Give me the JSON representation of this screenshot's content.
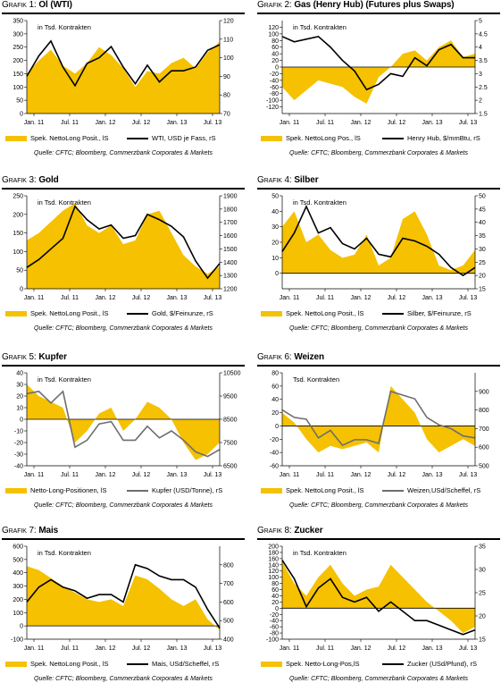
{
  "charts": [
    {
      "label": "Grafik 1:",
      "title": "Öl (WTI)",
      "unit_note": "in Tsd. Kontrakten",
      "area_legend": "Spek. NettoLong Posit., lS",
      "line_legend": "WTI, USD je Fass, rS",
      "line_color": "#000000",
      "source": "Quelle: CFTC; Bloomberg, Commerzbank Corporates & Markets",
      "x_ticks": [
        "Jan. 11",
        "Jul. 11",
        "Jan. 12",
        "Jul. 12",
        "Jan. 13",
        "Jul. 13"
      ]
    },
    {
      "label": "Grafik 2:",
      "title": "Gas (Henry Hub) (Futures plus Swaps)",
      "unit_note": "in Tsd. Kontrakten",
      "area_legend": "Spek. NettoLong Pos., lS",
      "line_legend": "Henry Hub, $/mmBtu, rS",
      "line_color": "#000000",
      "source": "Quelle: CFTC; Bloomberg, Commerzbank Corporates & Markets",
      "x_ticks": [
        "Jan. 11",
        "Jul. 11",
        "Jan. 12",
        "Jul. 12",
        "Jan. 13",
        "Jul. 13"
      ]
    },
    {
      "label": "Grafik 3:",
      "title": "Gold",
      "unit_note": "in Tsd. Kontrakten",
      "area_legend": "Spek. NettoLong Posit., lS",
      "line_legend": "Gold, $/Feinunze, rS",
      "line_color": "#000000",
      "source": "Quelle: CFTC; Bloomberg, Commerzbank Corporates & Markets",
      "x_ticks": [
        "Jan. 11",
        "Jul. 11",
        "Jan. 12",
        "Jul. 12",
        "Jan. 13",
        "Jul. 13"
      ]
    },
    {
      "label": "Grafik 4:",
      "title": "Silber",
      "unit_note": "in Tsd. Kontrakten",
      "area_legend": "Spek. NettoLong Posit., lS",
      "line_legend": "Silber, $/Feinunze, rS",
      "line_color": "#000000",
      "source": "Quelle: CFTC; Bloomberg, Commerzbank Corporates & Markets",
      "x_ticks": [
        "Jan. 11",
        "Jul. 11",
        "Jan. 12",
        "Jul. 12",
        "Jan. 13",
        "Jul. 13"
      ]
    },
    {
      "label": "Grafik 5:",
      "title": "Kupfer",
      "unit_note": "in Tsd. Kontrakten",
      "area_legend": "Netto-Long-Positionen, lS",
      "line_legend": "Kupfer (USD/Tonne), rS",
      "line_color": "#6e6e6e",
      "source": "Quelle: CFTC; Bloomberg, Commerzbank Corporates & Markets",
      "x_ticks": [
        "Jan. 11",
        "Jul. 11",
        "Jan. 12",
        "Jul. 12",
        "Jan. 13",
        "Jul. 13"
      ]
    },
    {
      "label": "Grafik 6:",
      "title": "Weizen",
      "unit_note": "Tsd. Kontrakten",
      "area_legend": "Spek. NettoLong Posit., lS",
      "line_legend": "Weizen,USd/Scheffel, rS",
      "line_color": "#6e6e6e",
      "source": "Quelle: CFTC; Bloomberg, Commerzbank Corporates & Markets",
      "x_ticks": [
        "Jan. 11",
        "Jul. 11",
        "Jan. 12",
        "Jul. 12",
        "Jan. 13",
        "Jul. 13"
      ]
    },
    {
      "label": "Grafik 7:",
      "title": "Mais",
      "unit_note": "in Tsd. Kontrakten",
      "area_legend": "Spek. NettoLong Posit., lS",
      "line_legend": "Mais, USd/Scheffel, rS",
      "line_color": "#000000",
      "source": "Quelle: CFTC; Bloomberg, Commerzbank Corporates & Markets",
      "x_ticks": [
        "Jan. 11",
        "Jul. 11",
        "Jan. 12",
        "Jul. 12",
        "Jan. 13",
        "Jul. 13"
      ]
    },
    {
      "label": "Grafik 8:",
      "title": "Zucker",
      "unit_note": "in Tsd. Kontrakten",
      "area_legend": "Spek. Netto-Long-Pos,lS",
      "line_legend": "Zucker (USd/Pfund), rS",
      "line_color": "#000000",
      "source": "Quelle: CFTC; Bloomberg, Commerzbank Corporates & Markets",
      "x_ticks": [
        "Jan. 11",
        "Jul. 11",
        "Jan. 12",
        "Jul. 12",
        "Jan. 13",
        "Jul. 13"
      ]
    }
  ],
  "chart_data": [
    {
      "type": "area",
      "title": "Öl (WTI)",
      "x": [
        "2011-01",
        "2011-03",
        "2011-05",
        "2011-07",
        "2011-09",
        "2011-11",
        "2012-01",
        "2012-03",
        "2012-05",
        "2012-07",
        "2012-09",
        "2012-11",
        "2013-01",
        "2013-03",
        "2013-05",
        "2013-07",
        "2013-09"
      ],
      "series": [
        {
          "name": "Spek. NettoLong Posit., lS",
          "axis": "left",
          "values": [
            150,
            200,
            240,
            180,
            150,
            190,
            250,
            220,
            170,
            100,
            160,
            150,
            190,
            210,
            170,
            230,
            270
          ]
        },
        {
          "name": "WTI, USD je Fass, rS",
          "axis": "right",
          "values": [
            90,
            101,
            109,
            95,
            85,
            97,
            100,
            106,
            95,
            86,
            96,
            87,
            93,
            93,
            95,
            104,
            107
          ]
        }
      ],
      "ylim_left": [
        0,
        350
      ],
      "ylim_right": [
        70,
        120
      ],
      "yticks_left": [
        0,
        50,
        100,
        150,
        200,
        250,
        300,
        350
      ],
      "yticks_right": [
        70,
        80,
        90,
        100,
        110,
        120
      ]
    },
    {
      "type": "area",
      "title": "Gas (Henry Hub) (Futures plus Swaps)",
      "x": [
        "2011-01",
        "2011-03",
        "2011-05",
        "2011-07",
        "2011-09",
        "2011-11",
        "2012-01",
        "2012-03",
        "2012-05",
        "2012-07",
        "2012-09",
        "2012-11",
        "2013-01",
        "2013-03",
        "2013-05",
        "2013-07",
        "2013-09"
      ],
      "series": [
        {
          "name": "Spek. NettoLong Pos., lS",
          "axis": "left",
          "values": [
            -60,
            -100,
            -70,
            -40,
            -50,
            -60,
            -90,
            -110,
            -30,
            0,
            40,
            50,
            20,
            60,
            80,
            30,
            40
          ]
        },
        {
          "name": "Henry Hub, $/mmBtu, rS",
          "axis": "right",
          "values": [
            4.4,
            4.2,
            4.3,
            4.4,
            4.0,
            3.5,
            3.1,
            2.4,
            2.6,
            3.0,
            2.9,
            3.6,
            3.3,
            3.9,
            4.1,
            3.6,
            3.6
          ]
        }
      ],
      "ylim_left": [
        -140,
        140
      ],
      "ylim_right": [
        1.5,
        5.0
      ],
      "yticks_left": [
        -120,
        -100,
        -80,
        -60,
        -40,
        -20,
        0,
        20,
        40,
        60,
        80,
        100,
        120
      ],
      "yticks_right": [
        1.5,
        2.0,
        2.5,
        3.0,
        3.5,
        4.0,
        4.5,
        5.0
      ]
    },
    {
      "type": "area",
      "title": "Gold",
      "x": [
        "2011-01",
        "2011-03",
        "2011-05",
        "2011-07",
        "2011-09",
        "2011-11",
        "2012-01",
        "2012-03",
        "2012-05",
        "2012-07",
        "2012-09",
        "2012-11",
        "2013-01",
        "2013-03",
        "2013-05",
        "2013-07",
        "2013-09"
      ],
      "series": [
        {
          "name": "Spek. NettoLong Posit., lS",
          "axis": "left",
          "values": [
            130,
            150,
            180,
            210,
            230,
            170,
            150,
            170,
            120,
            130,
            200,
            210,
            150,
            90,
            60,
            40,
            60
          ]
        },
        {
          "name": "Gold, $/Feinunze, rS",
          "axis": "right",
          "values": [
            1360,
            1420,
            1500,
            1580,
            1820,
            1720,
            1650,
            1680,
            1580,
            1600,
            1760,
            1720,
            1670,
            1590,
            1410,
            1280,
            1390
          ]
        }
      ],
      "ylim_left": [
        0,
        250
      ],
      "ylim_right": [
        1200,
        1900
      ],
      "yticks_left": [
        0,
        50,
        100,
        150,
        200,
        250
      ],
      "yticks_right": [
        1200,
        1300,
        1400,
        1500,
        1600,
        1700,
        1800,
        1900
      ]
    },
    {
      "type": "area",
      "title": "Silber",
      "x": [
        "2011-01",
        "2011-03",
        "2011-05",
        "2011-07",
        "2011-09",
        "2011-11",
        "2012-01",
        "2012-03",
        "2012-05",
        "2012-07",
        "2012-09",
        "2012-11",
        "2013-01",
        "2013-03",
        "2013-05",
        "2013-07",
        "2013-09"
      ],
      "series": [
        {
          "name": "Spek. NettoLong Posit., lS",
          "axis": "left",
          "values": [
            30,
            40,
            20,
            25,
            15,
            10,
            12,
            25,
            5,
            10,
            35,
            40,
            25,
            5,
            2,
            5,
            15
          ]
        },
        {
          "name": "Silber, $/Feinunze, rS",
          "axis": "right",
          "values": [
            29,
            36,
            46,
            36,
            38,
            32,
            30,
            34,
            28,
            27,
            34,
            33,
            31,
            28,
            23,
            20,
            23
          ]
        }
      ],
      "ylim_left": [
        -10,
        50
      ],
      "ylim_right": [
        15,
        50
      ],
      "yticks_left": [
        0,
        10,
        20,
        30,
        40,
        50
      ],
      "yticks_right": [
        15,
        20,
        25,
        30,
        35,
        40,
        45,
        50
      ]
    },
    {
      "type": "area",
      "title": "Kupfer",
      "x": [
        "2011-01",
        "2011-03",
        "2011-05",
        "2011-07",
        "2011-09",
        "2011-11",
        "2012-01",
        "2012-03",
        "2012-05",
        "2012-07",
        "2012-09",
        "2012-11",
        "2013-01",
        "2013-03",
        "2013-05",
        "2013-07",
        "2013-09"
      ],
      "series": [
        {
          "name": "Netto-Long-Positionen, lS",
          "axis": "left",
          "values": [
            30,
            20,
            15,
            10,
            -20,
            -10,
            5,
            10,
            -10,
            0,
            15,
            10,
            0,
            -20,
            -35,
            -30,
            -20
          ]
        },
        {
          "name": "Kupfer (USD/Tonne), rS",
          "axis": "right",
          "values": [
            9600,
            9700,
            9200,
            9700,
            7300,
            7600,
            8300,
            8400,
            7600,
            7600,
            8200,
            7700,
            8000,
            7600,
            7100,
            6900,
            7200
          ]
        }
      ],
      "ylim_left": [
        -40,
        40
      ],
      "ylim_right": [
        6500,
        10500
      ],
      "yticks_left": [
        -40,
        -30,
        -20,
        -10,
        0,
        10,
        20,
        30,
        40
      ],
      "yticks_right": [
        6500,
        7500,
        8500,
        9500,
        10500
      ]
    },
    {
      "type": "area",
      "title": "Weizen",
      "x": [
        "2011-01",
        "2011-03",
        "2011-05",
        "2011-07",
        "2011-09",
        "2011-11",
        "2012-01",
        "2012-03",
        "2012-05",
        "2012-07",
        "2012-09",
        "2012-11",
        "2013-01",
        "2013-03",
        "2013-05",
        "2013-07",
        "2013-09"
      ],
      "series": [
        {
          "name": "Spek. NettoLong Posit., lS",
          "axis": "left",
          "values": [
            20,
            5,
            -20,
            -40,
            -30,
            -35,
            -30,
            -25,
            -40,
            60,
            40,
            20,
            -20,
            -40,
            -30,
            -20,
            -30
          ]
        },
        {
          "name": "Weizen,USd/Scheffel, rS",
          "axis": "right",
          "values": [
            800,
            760,
            750,
            650,
            690,
            610,
            640,
            640,
            620,
            900,
            880,
            860,
            760,
            720,
            700,
            660,
            650
          ]
        }
      ],
      "ylim_left": [
        -60,
        80
      ],
      "ylim_right": [
        500,
        1000
      ],
      "yticks_left": [
        -60,
        -40,
        -20,
        0,
        20,
        40,
        60,
        80
      ],
      "yticks_right": [
        500,
        600,
        700,
        800,
        900
      ]
    },
    {
      "type": "area",
      "title": "Mais",
      "x": [
        "2011-01",
        "2011-03",
        "2011-05",
        "2011-07",
        "2011-09",
        "2011-11",
        "2012-01",
        "2012-03",
        "2012-05",
        "2012-07",
        "2012-09",
        "2012-11",
        "2013-01",
        "2013-03",
        "2013-05",
        "2013-07",
        "2013-09"
      ],
      "series": [
        {
          "name": "Spek. NettoLong Posit., lS",
          "axis": "left",
          "values": [
            450,
            420,
            360,
            300,
            250,
            200,
            180,
            200,
            150,
            380,
            350,
            280,
            200,
            150,
            200,
            50,
            -30
          ]
        },
        {
          "name": "Mais, USd/Scheffel, rS",
          "axis": "right",
          "values": [
            600,
            680,
            720,
            680,
            660,
            620,
            640,
            640,
            600,
            800,
            780,
            740,
            720,
            720,
            680,
            560,
            460
          ]
        }
      ],
      "ylim_left": [
        -100,
        600
      ],
      "ylim_right": [
        400,
        900
      ],
      "yticks_left": [
        -100,
        0,
        100,
        200,
        300,
        400,
        500,
        600
      ],
      "yticks_right": [
        400,
        500,
        600,
        700,
        800
      ]
    },
    {
      "type": "area",
      "title": "Zucker",
      "x": [
        "2011-01",
        "2011-03",
        "2011-05",
        "2011-07",
        "2011-09",
        "2011-11",
        "2012-01",
        "2012-03",
        "2012-05",
        "2012-07",
        "2012-09",
        "2012-11",
        "2013-01",
        "2013-03",
        "2013-05",
        "2013-07",
        "2013-09"
      ],
      "series": [
        {
          "name": "Spek. Netto-Long-Pos,lS",
          "axis": "left",
          "values": [
            150,
            80,
            40,
            100,
            140,
            80,
            40,
            60,
            70,
            140,
            100,
            60,
            20,
            -10,
            -40,
            -80,
            -60
          ]
        },
        {
          "name": "Zucker (USd/Pfund), rS",
          "axis": "right",
          "values": [
            32,
            28,
            22,
            26,
            28,
            24,
            23,
            24,
            21,
            23,
            21,
            19,
            19,
            18,
            17,
            16,
            17
          ]
        }
      ],
      "ylim_left": [
        -100,
        200
      ],
      "ylim_right": [
        15,
        35
      ],
      "yticks_left": [
        -100,
        -80,
        -60,
        -40,
        -20,
        0,
        20,
        40,
        60,
        80,
        100,
        120,
        140,
        160,
        180,
        200
      ],
      "yticks_right": [
        15,
        20,
        25,
        30,
        35
      ]
    }
  ],
  "colors": {
    "area": "#F5C100"
  }
}
